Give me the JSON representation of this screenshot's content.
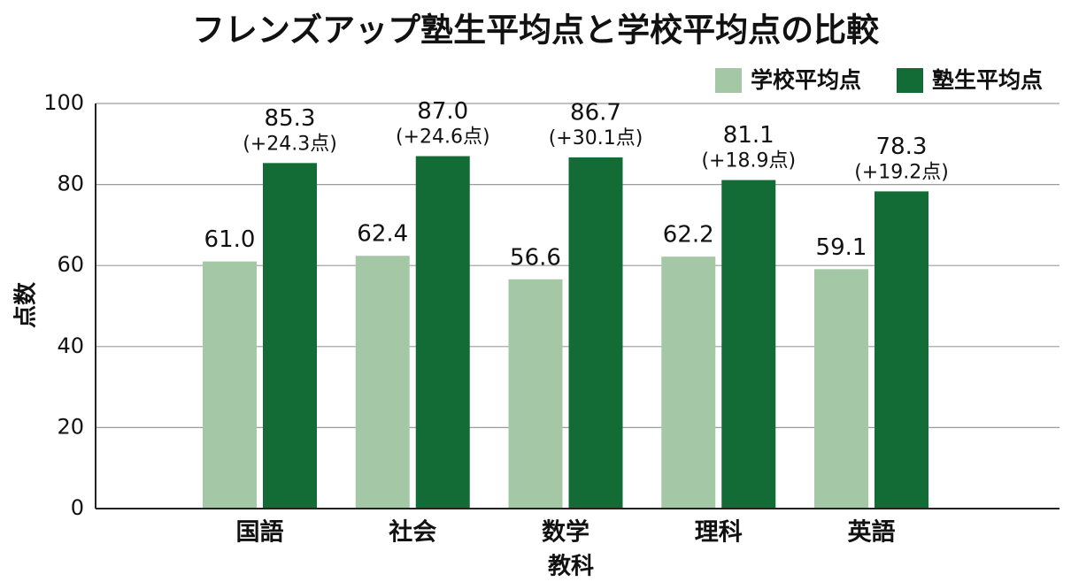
{
  "chart_data": {
    "type": "bar",
    "title": "フレンズアップ塾生平均点と学校平均点の比較",
    "xlabel": "教科",
    "ylabel": "点数",
    "categories": [
      "国語",
      "社会",
      "数学",
      "理科",
      "英語"
    ],
    "series": [
      {
        "name": "学校平均点",
        "values": [
          61.0,
          62.4,
          56.6,
          62.2,
          59.1
        ],
        "color": "#a4c8a5"
      },
      {
        "name": "塾生平均点",
        "values": [
          85.3,
          87.0,
          86.7,
          81.1,
          78.3
        ],
        "color": "#136b35",
        "diff_labels": [
          "(+24.3点)",
          "(+24.6点)",
          "(+30.1点)",
          "(+18.9点)",
          "(+19.2点)"
        ]
      }
    ],
    "ylim": [
      0,
      100
    ],
    "yticks": [
      0,
      20,
      40,
      60,
      80,
      100
    ],
    "grid": true,
    "legend_position": "top-right"
  }
}
